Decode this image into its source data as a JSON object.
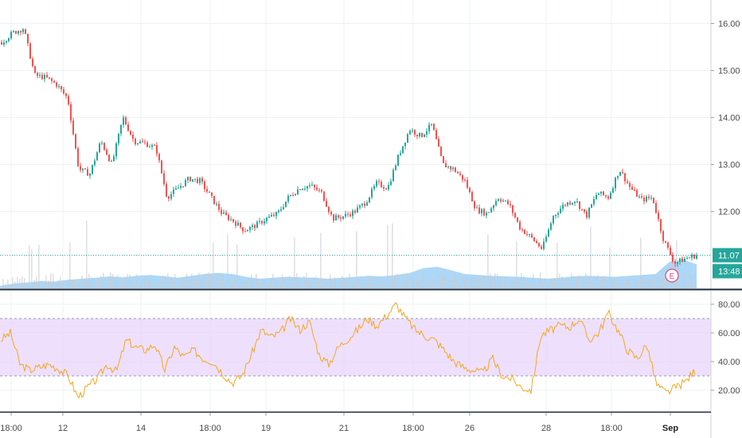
{
  "chart_data": [
    {
      "type": "candlestick",
      "panel": "price",
      "yticks": [
        "16.00",
        "15.00",
        "14.00",
        "13.00",
        "12.00"
      ],
      "ytick_values": [
        16,
        15,
        14,
        13,
        12
      ],
      "ylim": [
        10.35,
        16.5
      ],
      "x_start": "Aug 9 18:00",
      "x_end": "Sep 3",
      "close_series": [
        15.6,
        15.8,
        15.9,
        14.9,
        14.85,
        14.7,
        14.4,
        12.9,
        12.8,
        13.5,
        13.0,
        14.0,
        13.5,
        13.45,
        13.35,
        12.3,
        12.5,
        12.7,
        12.65,
        12.3,
        11.95,
        11.8,
        11.6,
        11.7,
        11.85,
        11.95,
        12.3,
        12.5,
        12.55,
        12.4,
        11.85,
        11.9,
        12.0,
        12.2,
        12.6,
        12.5,
        13.2,
        13.75,
        13.6,
        13.85,
        13.0,
        12.9,
        12.65,
        12.05,
        11.95,
        12.3,
        12.15,
        11.65,
        11.45,
        11.2,
        11.9,
        12.15,
        12.25,
        11.9,
        12.4,
        12.3,
        12.9,
        12.5,
        12.25,
        12.3,
        11.4,
        10.9,
        11.0,
        11.07
      ],
      "last_price_label": "11.07",
      "countdown_label": "13:48",
      "last_price": 11.07,
      "volume_area": [
        0.05,
        0.1,
        0.12,
        0.15,
        0.14,
        0.18,
        0.2,
        0.22,
        0.25,
        0.23,
        0.26,
        0.28,
        0.25,
        0.22,
        0.26,
        0.3,
        0.32,
        0.3,
        0.24,
        0.2,
        0.22,
        0.24,
        0.23,
        0.22,
        0.2,
        0.22,
        0.24,
        0.26,
        0.25,
        0.28,
        0.32,
        0.42,
        0.45,
        0.38,
        0.3,
        0.28,
        0.26,
        0.25,
        0.24,
        0.22,
        0.2,
        0.22,
        0.25,
        0.26,
        0.25,
        0.24,
        0.26,
        0.28,
        0.3,
        0.55,
        0.6,
        0.5
      ],
      "earnings_marker": "E"
    },
    {
      "type": "line",
      "panel": "RSI",
      "yticks": [
        "80.00",
        "60.00",
        "40.00",
        "20.00"
      ],
      "ytick_values": [
        80,
        60,
        40,
        20
      ],
      "ylim": [
        5,
        90
      ],
      "band": [
        30,
        70
      ],
      "values": [
        55,
        60,
        38,
        34,
        36,
        38,
        35,
        30,
        15,
        22,
        28,
        38,
        33,
        55,
        50,
        48,
        52,
        34,
        50,
        43,
        48,
        42,
        40,
        32,
        25,
        30,
        45,
        62,
        57,
        60,
        70,
        62,
        68,
        45,
        38,
        50,
        56,
        62,
        70,
        65,
        72,
        80,
        70,
        62,
        58,
        55,
        48,
        40,
        36,
        34,
        32,
        42,
        30,
        28,
        22,
        20,
        58,
        62,
        65,
        64,
        70,
        55,
        60,
        74,
        62,
        48,
        42,
        52,
        24,
        18,
        22,
        26,
        34
      ]
    }
  ],
  "x_axis": {
    "labels": [
      "18:00",
      "12",
      "14",
      "18:00",
      "19",
      "21",
      "18:00",
      "26",
      "28",
      "18:00",
      "Sep"
    ],
    "bold": [
      false,
      false,
      false,
      false,
      false,
      false,
      false,
      false,
      false,
      false,
      true
    ],
    "positions_data": [
      "Aug 9 18:00",
      "Aug 12",
      "Aug 14",
      "Aug 15 18:00",
      "Aug 19",
      "Aug 21",
      "Aug 22 18:00",
      "Aug 26",
      "Aug 28",
      "Aug 29 18:00",
      "Sep 1"
    ]
  },
  "colors": {
    "up": "#26a69a",
    "down": "#ef5350",
    "rsi": "#f5a623",
    "rsi_band": "#e8d5fb",
    "volume": "#9fd0f5",
    "last_price": "#26a69a",
    "earnings": "#e0467c"
  }
}
